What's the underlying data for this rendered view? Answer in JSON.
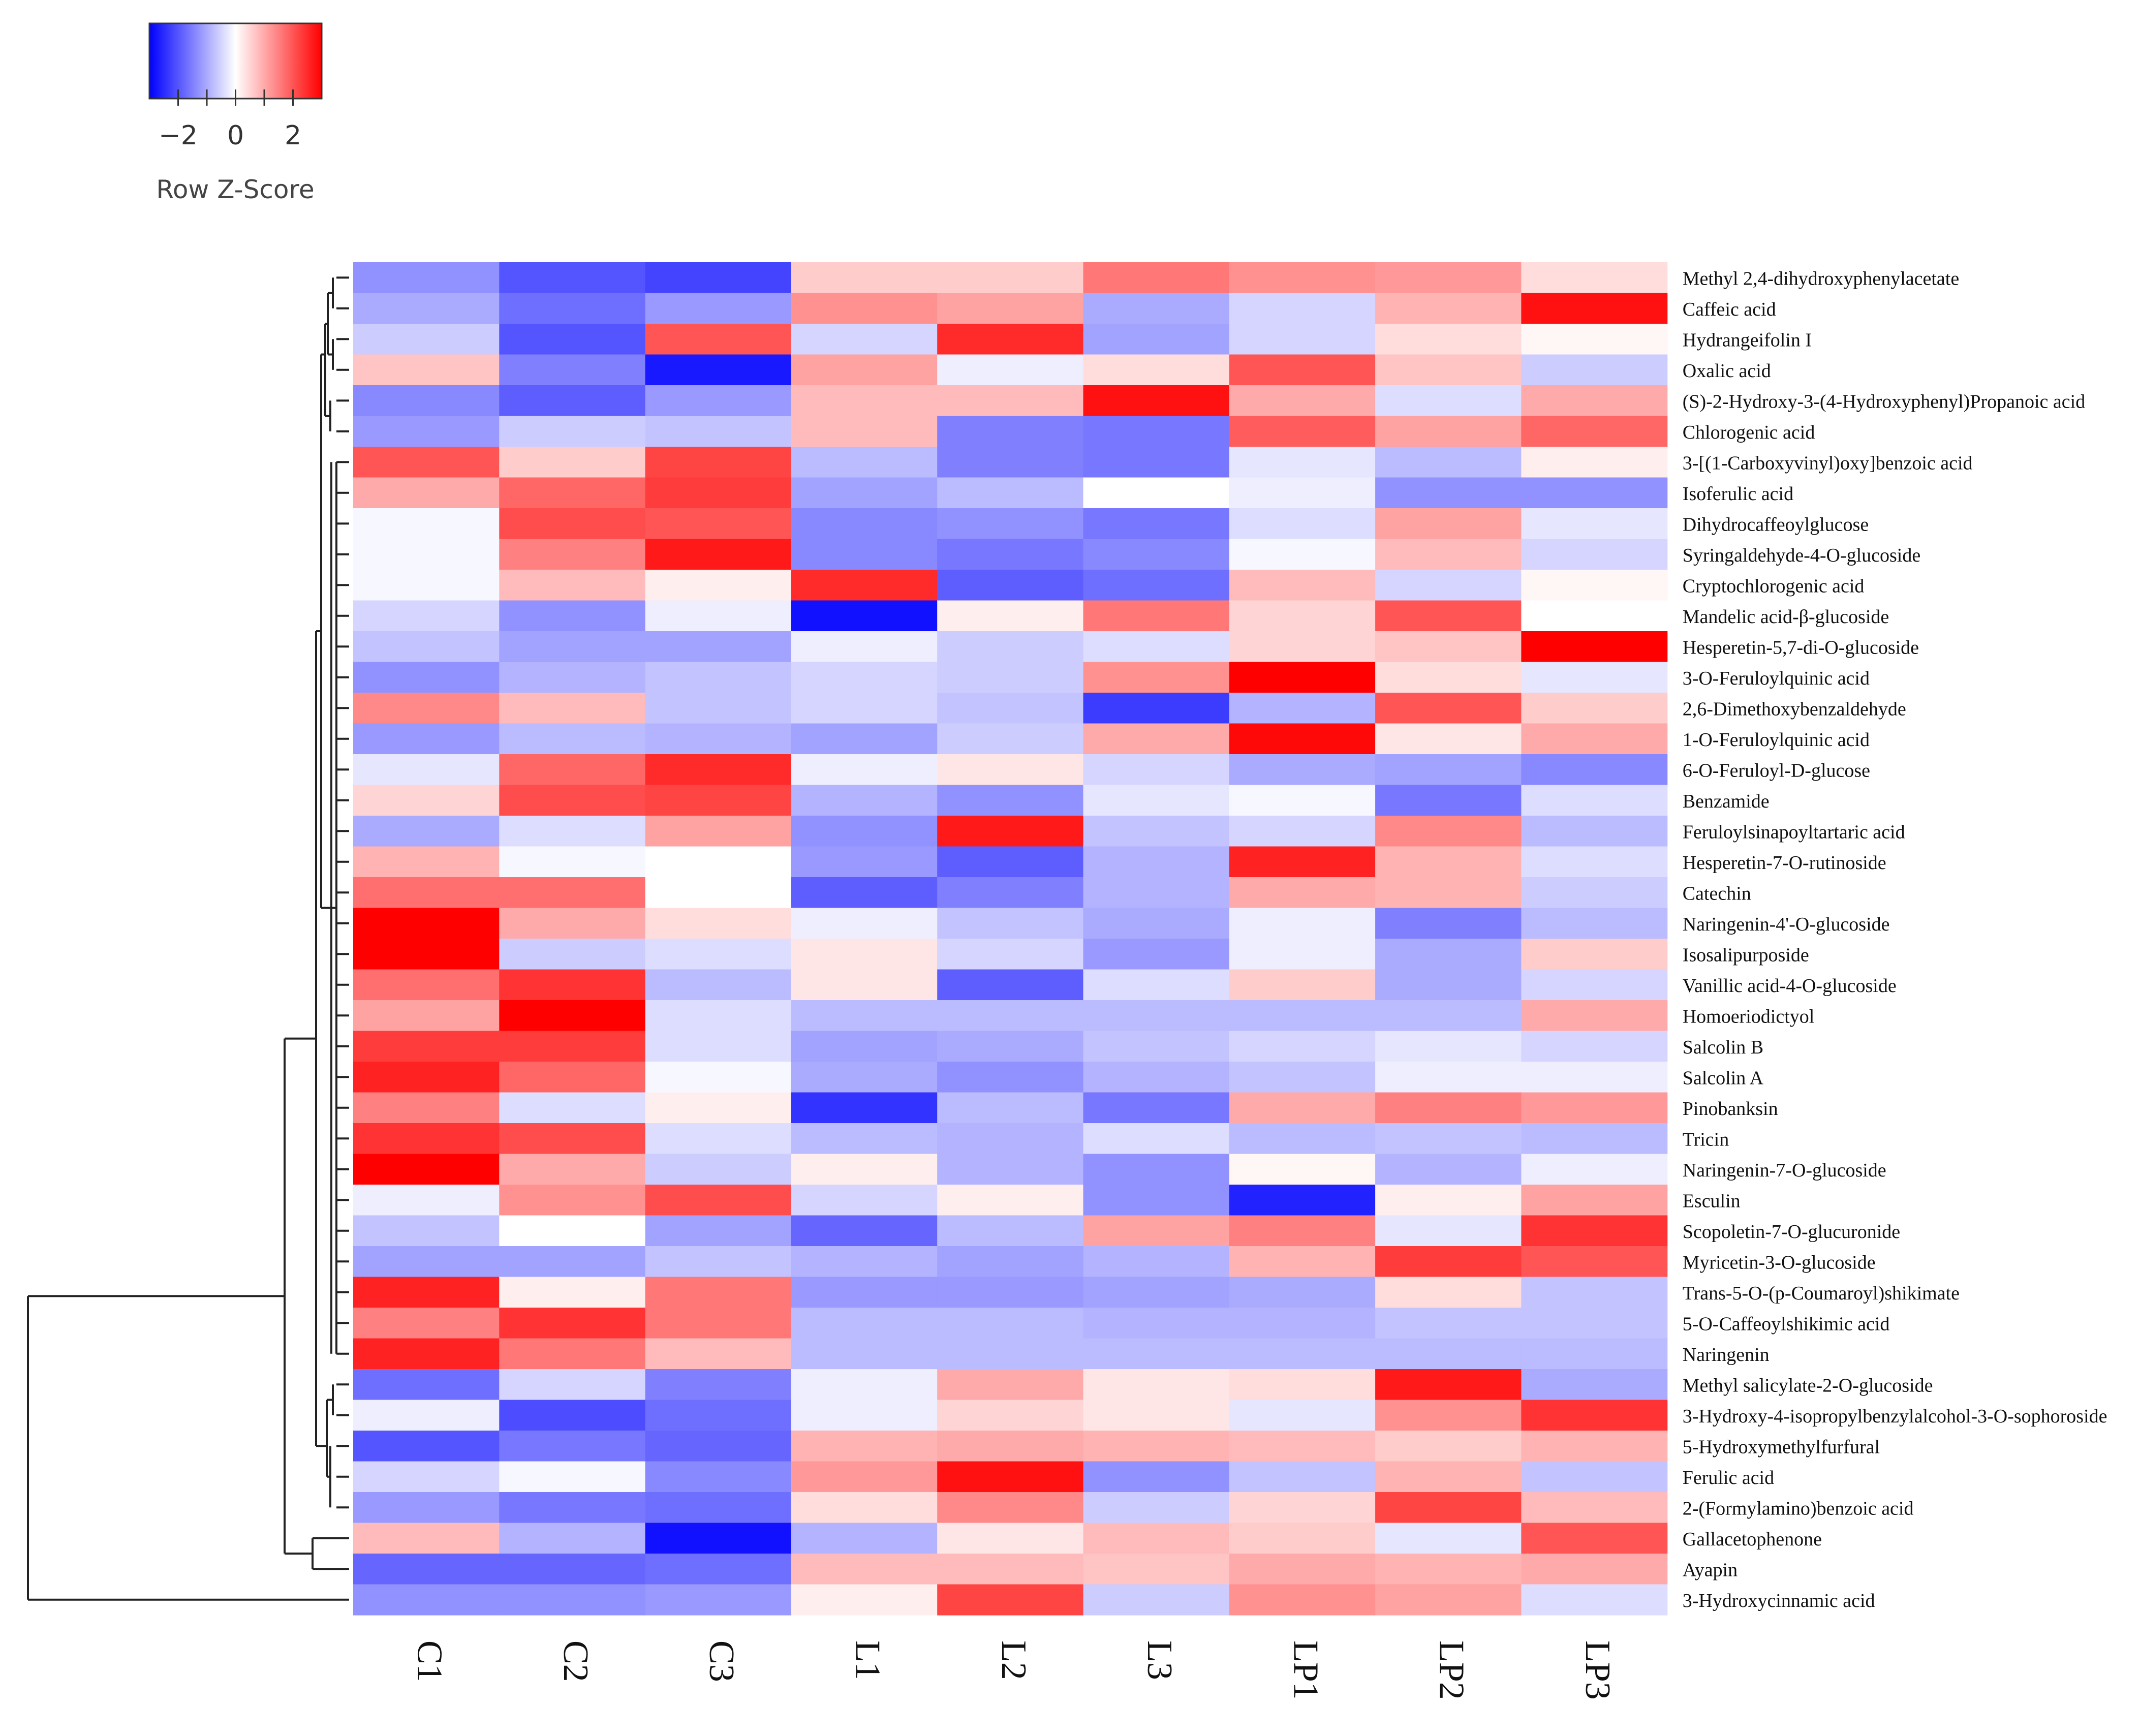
{
  "chart_data": {
    "type": "heatmap",
    "title": "",
    "color_key": {
      "title": "Row Z-Score",
      "tick_labels": [
        "−2",
        "0",
        "2"
      ],
      "ticks": [
        -2,
        0,
        2
      ],
      "range": [
        -3,
        3
      ],
      "low_color": "#0000ff",
      "mid_color": "#ffffff",
      "high_color": "#ff0000"
    },
    "columns": [
      "C1",
      "C2",
      "C3",
      "L1",
      "L2",
      "L3",
      "LP1",
      "LP2",
      "LP3"
    ],
    "rows": [
      "Methyl 2,4-dihydroxyphenylacetate",
      "Caffeic acid",
      "Hydrangeifolin I",
      "Oxalic acid",
      "(S)-2-Hydroxy-3-(4-Hydroxyphenyl)Propanoic acid",
      "Chlorogenic acid",
      "3-[(1-Carboxyvinyl)oxy]benzoic acid",
      "Isoferulic acid",
      "Dihydrocaffeoylglucose",
      "Syringaldehyde-4-O-glucoside",
      "Cryptochlorogenic acid",
      "Mandelic acid-β-glucoside",
      "Hesperetin-5,7-di-O-glucoside",
      "3-O-Feruloylquinic acid",
      "2,6-Dimethoxybenzaldehyde",
      "1-O-Feruloylquinic acid",
      "6-O-Feruloyl-D-glucose",
      "Benzamide",
      "Feruloylsinapoyltartaric acid",
      "Hesperetin-7-O-rutinoside",
      "Catechin",
      "Naringenin-4'-O-glucoside",
      "Isosalipurposide",
      "Vanillic acid-4-O-glucoside",
      "Homoeriodictyol",
      "Salcolin B",
      "Salcolin A",
      "Pinobanksin",
      "Tricin",
      "Naringenin-7-O-glucoside",
      "Esculin",
      "Scopoletin-7-O-glucuronide",
      "Myricetin-3-O-glucoside",
      "Trans-5-O-(p-Coumaroyl)shikimate",
      "5-O-Caffeoylshikimic acid",
      "Naringenin",
      "Methyl salicylate-2-O-glucoside",
      "3-Hydroxy-4-isopropylbenzylalcohol-3-O-sophoroside",
      "5-Hydroxymethylfurfural",
      "Ferulic acid",
      "2-(Formylamino)benzoic acid",
      "Gallacetophenone",
      "Ayapin",
      "3-Hydroxycinnamic acid"
    ],
    "values": [
      [
        -1.3,
        -2.0,
        -2.2,
        0.6,
        0.6,
        1.6,
        1.3,
        1.2,
        0.4
      ],
      [
        -1.0,
        -1.7,
        -1.2,
        1.3,
        1.1,
        -1.0,
        -0.5,
        0.9,
        2.8
      ],
      [
        -0.6,
        -2.0,
        2.0,
        -0.5,
        2.5,
        -1.1,
        -0.5,
        0.4,
        0.1
      ],
      [
        0.7,
        -1.5,
        -2.7,
        1.1,
        -0.2,
        0.4,
        2.0,
        0.7,
        -0.6
      ],
      [
        -1.4,
        -1.9,
        -1.2,
        0.8,
        0.8,
        2.8,
        1.0,
        -0.4,
        1.0
      ],
      [
        -1.2,
        -0.6,
        -0.7,
        0.8,
        -1.5,
        -1.6,
        1.9,
        1.1,
        1.8
      ],
      [
        2.0,
        0.6,
        2.2,
        -0.8,
        -1.5,
        -1.6,
        -0.3,
        -0.8,
        0.2
      ],
      [
        1.0,
        1.8,
        2.3,
        -1.1,
        -0.8,
        0.0,
        -0.2,
        -1.3,
        -1.3
      ],
      [
        -0.1,
        2.1,
        2.0,
        -1.4,
        -1.3,
        -1.6,
        -0.4,
        1.1,
        -0.3
      ],
      [
        -0.1,
        1.5,
        2.7,
        -1.4,
        -1.6,
        -1.4,
        -0.1,
        0.8,
        -0.5
      ],
      [
        -0.1,
        0.8,
        0.2,
        2.5,
        -1.9,
        -1.7,
        0.8,
        -0.5,
        0.1
      ],
      [
        -0.5,
        -1.3,
        -0.2,
        -2.8,
        0.2,
        1.6,
        0.5,
        2.0,
        0.0
      ],
      [
        -0.7,
        -1.1,
        -1.1,
        -0.2,
        -0.6,
        -0.4,
        0.5,
        0.7,
        3.0
      ],
      [
        -1.3,
        -0.9,
        -0.7,
        -0.5,
        -0.6,
        1.3,
        3.0,
        0.4,
        -0.3
      ],
      [
        1.4,
        0.8,
        -0.7,
        -0.5,
        -0.7,
        -2.3,
        -0.9,
        2.0,
        0.6
      ],
      [
        -1.2,
        -0.8,
        -0.9,
        -1.1,
        -0.6,
        1.0,
        2.9,
        0.3,
        1.0
      ],
      [
        -0.3,
        1.8,
        2.5,
        -0.2,
        0.3,
        -0.5,
        -1.0,
        -1.1,
        -1.4
      ],
      [
        0.5,
        2.1,
        2.2,
        -0.9,
        -1.3,
        -0.3,
        -0.1,
        -1.6,
        -0.4
      ],
      [
        -1.0,
        -0.4,
        1.1,
        -1.3,
        2.7,
        -0.7,
        -0.5,
        1.4,
        -0.8
      ],
      [
        0.9,
        -0.1,
        0.0,
        -1.2,
        -1.9,
        -0.9,
        2.6,
        0.9,
        -0.4
      ],
      [
        1.7,
        1.7,
        0.0,
        -1.9,
        -1.5,
        -0.9,
        1.0,
        0.9,
        -0.6
      ],
      [
        3.0,
        1.0,
        0.4,
        -0.2,
        -0.7,
        -1.0,
        -0.2,
        -1.5,
        -0.8
      ],
      [
        3.0,
        -0.6,
        -0.4,
        0.3,
        -0.5,
        -1.2,
        -0.2,
        -1.0,
        0.6
      ],
      [
        1.7,
        2.4,
        -0.8,
        0.3,
        -1.9,
        -0.4,
        0.6,
        -1.0,
        -0.5
      ],
      [
        1.1,
        3.0,
        -0.4,
        -0.8,
        -0.8,
        -0.8,
        -0.8,
        -0.8,
        1.0
      ],
      [
        2.3,
        2.3,
        -0.4,
        -1.1,
        -1.0,
        -0.7,
        -0.5,
        -0.3,
        -0.5
      ],
      [
        2.6,
        1.8,
        -0.1,
        -1.0,
        -1.3,
        -0.9,
        -0.7,
        -0.2,
        -0.2
      ],
      [
        1.5,
        -0.4,
        0.2,
        -2.4,
        -0.8,
        -1.6,
        1.0,
        1.5,
        1.2
      ],
      [
        2.4,
        2.1,
        -0.4,
        -0.8,
        -0.9,
        -0.4,
        -0.8,
        -0.7,
        -0.8
      ],
      [
        3.0,
        1.0,
        -0.6,
        0.2,
        -0.9,
        -1.3,
        0.1,
        -0.9,
        -0.2
      ],
      [
        -0.2,
        1.3,
        2.1,
        -0.5,
        0.2,
        -1.3,
        -2.6,
        0.2,
        1.1
      ],
      [
        -0.7,
        0.0,
        -1.1,
        -1.8,
        -0.8,
        1.1,
        1.5,
        -0.3,
        2.4
      ],
      [
        -1.1,
        -1.1,
        -0.7,
        -0.9,
        -1.1,
        -0.9,
        0.9,
        2.3,
        2.0
      ],
      [
        2.6,
        0.2,
        1.6,
        -1.2,
        -1.2,
        -1.1,
        -1.0,
        0.4,
        -0.7
      ],
      [
        1.5,
        2.4,
        1.6,
        -0.8,
        -0.8,
        -0.9,
        -0.9,
        -0.7,
        -0.7
      ],
      [
        2.6,
        1.6,
        0.8,
        -0.8,
        -0.8,
        -0.8,
        -0.8,
        -0.8,
        -0.8
      ],
      [
        -1.7,
        -0.5,
        -1.5,
        -0.2,
        1.0,
        0.3,
        0.4,
        2.7,
        -1.0
      ],
      [
        -0.2,
        -2.1,
        -1.7,
        -0.2,
        0.5,
        0.3,
        -0.3,
        1.3,
        2.4
      ],
      [
        -2.0,
        -1.6,
        -1.8,
        0.9,
        1.0,
        0.9,
        0.8,
        0.6,
        0.9
      ],
      [
        -0.5,
        -0.1,
        -1.4,
        1.2,
        2.8,
        -1.3,
        -0.7,
        0.9,
        -0.7
      ],
      [
        -1.2,
        -1.6,
        -1.7,
        0.4,
        1.4,
        -0.6,
        0.5,
        2.2,
        0.8
      ],
      [
        0.8,
        -0.9,
        -2.8,
        -0.9,
        0.3,
        0.8,
        0.6,
        -0.3,
        2.0
      ],
      [
        -1.8,
        -1.8,
        -1.7,
        0.8,
        0.8,
        0.7,
        1.0,
        0.9,
        1.0
      ],
      [
        -1.3,
        -1.3,
        -1.2,
        0.2,
        2.2,
        -0.6,
        1.3,
        1.1,
        -0.4
      ]
    ],
    "row_dendrogram": true,
    "row_order_from_clustering": true
  }
}
